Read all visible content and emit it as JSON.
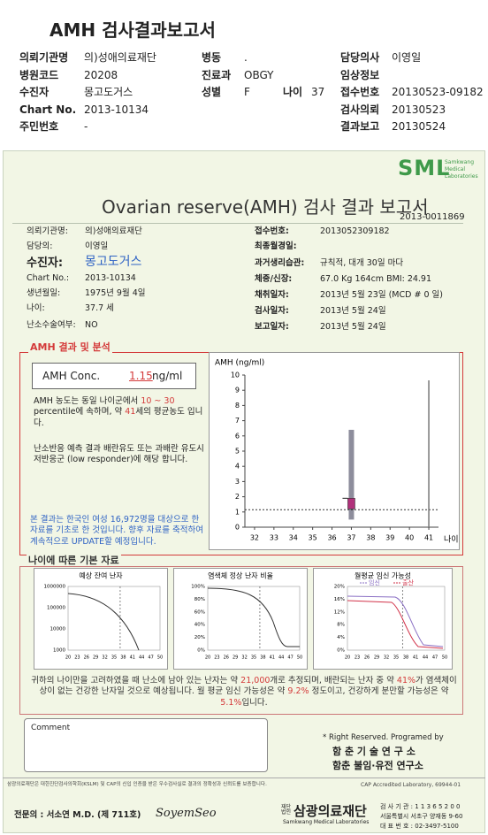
{
  "header": {
    "title": "AMH 검사결과보고서",
    "fields": [
      {
        "label": "의뢰기관명",
        "value": "의)성애의료재단"
      },
      {
        "label": "병동",
        "value": "."
      },
      {
        "label": "담당의사",
        "value": "이영일"
      },
      {
        "label": "병원코드",
        "value": "20208"
      },
      {
        "label": "진료과",
        "value": "OBGY"
      },
      {
        "label": "임상정보"
      },
      {
        "label": "수진자",
        "value": "몽고도거스"
      },
      {
        "label": "성별",
        "value": "F"
      },
      {
        "label": "나이",
        "value": "37"
      },
      {
        "label": "접수번호",
        "value": "20130523-09182"
      },
      {
        "label": "Chart No.",
        "value": "2013-10134"
      },
      {
        "label": "검사의뢰",
        "value": "20130523"
      },
      {
        "label": "주민번호",
        "value": "-"
      },
      {
        "label": "결과보고",
        "value": "20130524"
      }
    ]
  },
  "report": {
    "logo": "SML",
    "logo_sub": [
      "Samkwang",
      "Medical",
      "Laboratories"
    ],
    "title": "Ovarian reserve(AMH) 검사 결과 보고서",
    "report_no": "2013-0011869",
    "patient_left": [
      {
        "label": "의뢰기관명:",
        "value": "의)성애의료재단"
      },
      {
        "label": "담당의:",
        "value": "이영일"
      },
      {
        "label": "수진자:",
        "value": "몽고도거스"
      },
      {
        "label": "Chart No.:",
        "value": "2013-10134"
      },
      {
        "label": "생년월일:",
        "value": "1975년 9월 4일"
      },
      {
        "label": "나이:",
        "value": "37.7 세"
      },
      {
        "label": "난소수술여부:",
        "value": "NO"
      }
    ],
    "patient_right": [
      {
        "label": "접수번호:",
        "value": "2013052309182"
      },
      {
        "label": "최종월경일:"
      },
      {
        "label": "과거생리습관:",
        "value": "규칙적, 대개 30일 마다"
      },
      {
        "label": "체중/신장:",
        "value": "67.0 Kg  164cm   BMI: 24.91"
      },
      {
        "label": "채취일자:",
        "value": "2013년 5월 23일  (MCD # 0 일)"
      },
      {
        "label": "검사일자:",
        "value": "2013년 5월 24일"
      },
      {
        "label": "보고일자:",
        "value": "2013년 5월 24일"
      }
    ],
    "analysis": {
      "title": "AMH 결과 및 분석",
      "conc_label": "AMH Conc.",
      "conc_value": 1.15,
      "conc_unit": "ng/ml",
      "paragraph1": [
        "AMH 농도는 동일 나이군에서 ",
        "10 ~ 30",
        " percentile에 속하며, 약 ",
        41,
        "세의 평균농도 입니다."
      ],
      "paragraph2": "난소반응 예측 결과 배란유도 또는 과배란 유도시 저반응군 (low responder)에 해당 합니다.",
      "paragraph3": "본 결과는 한국인 여성 16,972명을 대상으로 한 자료를 기초로 한 것입니다. 향후 자료를 축적하여 계속적으로 UPDATE할 예정입니다.",
      "chart": {
        "type": "range",
        "ylabel": "AMH (ng/ml)",
        "xlabel": "나이",
        "ylim": [
          0,
          10
        ],
        "yticks": [
          0,
          1,
          2,
          3,
          4,
          5,
          6,
          7,
          8,
          9,
          10
        ],
        "xlim": [
          31.5,
          41.5
        ],
        "xticks": [
          32,
          33,
          34,
          35,
          36,
          37,
          38,
          39,
          40,
          41
        ],
        "range": {
          "x": 37,
          "low": 0.5,
          "high": 6.4,
          "color": "#8d8d9c"
        },
        "box": {
          "low": 1.2,
          "high": 1.9,
          "color": "#b1317b"
        }
      }
    },
    "basic": {
      "title": "나이에 따른 기본 자료",
      "charts": [
        {
          "title": "예상 잔여 난자",
          "yticks": [
            "1000000",
            "100000",
            "10000",
            "1000"
          ],
          "xticks": [
            20,
            23,
            26,
            29,
            32,
            35,
            38,
            41,
            44,
            47,
            50
          ]
        },
        {
          "title": "염색체 정상 난자 비율",
          "yticks": [
            "100%",
            "80%",
            "60%",
            "40%",
            "20%",
            "0%"
          ],
          "xticks": [
            20,
            23,
            26,
            29,
            32,
            35,
            38,
            41,
            44,
            47,
            50
          ]
        },
        {
          "title": "월평균 임신 가능성",
          "legend": [
            {
              "name": "임신",
              "color": "#8a6fc4"
            },
            {
              "name": "출산",
              "color": "#d2334a"
            }
          ],
          "yticks": [
            "20%",
            "16%",
            "12%",
            "8%",
            "4%",
            "0%"
          ],
          "xticks": [
            20,
            23,
            26,
            29,
            32,
            35,
            38,
            41,
            44,
            47,
            50
          ]
        }
      ],
      "summary": [
        "귀하의 나이만을 고려하였을 때 난소에 남아 있는 난자는 약 ",
        "21,000",
        "개로 추정되며, 배란되는 난자 중 약 ",
        "41%",
        "가 염색체이상이 없는 건강한 난자일 것으로 예상됩니다. 월 평균 임신 가능성은 약 ",
        "9.2%",
        " 정도이고, 건강하게 분만할 가능성은 약 ",
        "5.1%",
        "입니다."
      ]
    },
    "comment_label": "Comment",
    "credit": [
      "* Right Reserved. Programed by",
      "함 춘 기 술 연 구 소",
      "함춘 불임·유전 연구소"
    ]
  },
  "footer": {
    "notice": "삼광의료재단은 대한진단검사의학회(KSLM) 및 CAP의 신입 인증을 받은 우수검사실로 결과의 정확성과 신뢰도를 보증합니다.",
    "cap": "CAP  Accredited  Laboratory,  69944-01",
    "specialist": "전문의 : 서소연 M.D. (제 711호)",
    "signature": "SoyemSeo",
    "foundation_prefix": "재단법인",
    "foundation": "삼광의료재단",
    "foundation_en": "Samkwang Medical Laboratories",
    "info": [
      "검 사 기 관 : 1 1 3 6 5 2 0 0",
      "서울특별시 서초구 양재동 9-60",
      "대 표 번 호 : 02-3497-5100"
    ]
  }
}
